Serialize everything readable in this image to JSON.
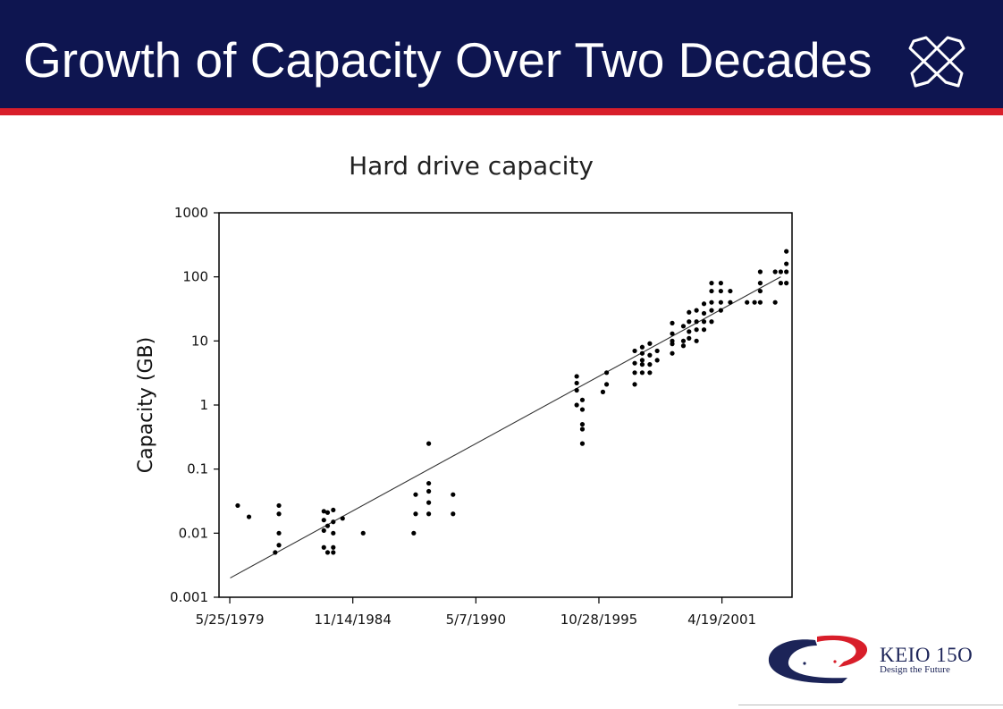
{
  "slide": {
    "title": "Growth of Capacity Over Two Decades",
    "header_icon": "crossed-pens-icon",
    "colors": {
      "header_bg": "#0e1550",
      "accent_bar": "#d81e2a",
      "brand_blue": "#1c2458",
      "brand_red": "#d81e2a"
    }
  },
  "brand": {
    "name": "KEIO 15O",
    "tagline": "Design the Future"
  },
  "chart_data": {
    "type": "scatter",
    "title": "Hard drive capacity",
    "xlabel": "",
    "ylabel": "Capacity (GB)",
    "y_scale": "log",
    "ylim": [
      0.001,
      1000
    ],
    "y_ticks": [
      {
        "value": 0.001,
        "label": "0.001"
      },
      {
        "value": 0.01,
        "label": "0.01"
      },
      {
        "value": 0.1,
        "label": "0.1"
      },
      {
        "value": 1,
        "label": "1"
      },
      {
        "value": 10,
        "label": "10"
      },
      {
        "value": 100,
        "label": "100"
      },
      {
        "value": 1000,
        "label": "1000"
      }
    ],
    "xlim": [
      "1978-12-01",
      "2004-06-01"
    ],
    "x_ticks": [
      {
        "value": "1979-05-25",
        "label": "5/25/1979"
      },
      {
        "value": "1984-11-14",
        "label": "11/14/1984"
      },
      {
        "value": "1990-05-07",
        "label": "5/7/1990"
      },
      {
        "value": "1995-10-28",
        "label": "10/28/1995"
      },
      {
        "value": "2001-04-19",
        "label": "4/19/2001"
      }
    ],
    "grid": false,
    "legend": "none",
    "trend_line": [
      {
        "x": "1979-06-01",
        "y": 0.002
      },
      {
        "x": "2003-12-01",
        "y": 100
      }
    ],
    "points": [
      {
        "x": "1979-10-01",
        "y": 0.027
      },
      {
        "x": "1980-04-01",
        "y": 0.018
      },
      {
        "x": "1981-08-01",
        "y": 0.027
      },
      {
        "x": "1981-08-01",
        "y": 0.02
      },
      {
        "x": "1981-08-01",
        "y": 0.01
      },
      {
        "x": "1981-08-01",
        "y": 0.0065
      },
      {
        "x": "1981-06-01",
        "y": 0.005
      },
      {
        "x": "1983-08-01",
        "y": 0.022
      },
      {
        "x": "1983-08-01",
        "y": 0.016
      },
      {
        "x": "1983-08-01",
        "y": 0.011
      },
      {
        "x": "1983-08-01",
        "y": 0.006
      },
      {
        "x": "1984-01-01",
        "y": 0.023
      },
      {
        "x": "1984-01-01",
        "y": 0.015
      },
      {
        "x": "1984-01-01",
        "y": 0.01
      },
      {
        "x": "1984-01-01",
        "y": 0.006
      },
      {
        "x": "1984-01-01",
        "y": 0.005
      },
      {
        "x": "1983-10-01",
        "y": 0.021
      },
      {
        "x": "1983-10-01",
        "y": 0.013
      },
      {
        "x": "1983-10-01",
        "y": 0.005
      },
      {
        "x": "1984-06-01",
        "y": 0.017
      },
      {
        "x": "1985-05-01",
        "y": 0.01
      },
      {
        "x": "1987-09-01",
        "y": 0.04
      },
      {
        "x": "1987-09-01",
        "y": 0.02
      },
      {
        "x": "1987-08-01",
        "y": 0.01
      },
      {
        "x": "1988-04-01",
        "y": 0.25
      },
      {
        "x": "1988-04-01",
        "y": 0.06
      },
      {
        "x": "1988-04-01",
        "y": 0.045
      },
      {
        "x": "1988-04-01",
        "y": 0.03
      },
      {
        "x": "1988-04-01",
        "y": 0.02
      },
      {
        "x": "1989-05-01",
        "y": 0.04
      },
      {
        "x": "1989-05-01",
        "y": 0.02
      },
      {
        "x": "1994-11-01",
        "y": 2.8
      },
      {
        "x": "1994-11-01",
        "y": 2.2
      },
      {
        "x": "1994-11-01",
        "y": 1.7
      },
      {
        "x": "1994-11-01",
        "y": 1.0
      },
      {
        "x": "1995-02-01",
        "y": 1.2
      },
      {
        "x": "1995-02-01",
        "y": 0.85
      },
      {
        "x": "1995-02-01",
        "y": 0.5
      },
      {
        "x": "1995-02-01",
        "y": 0.42
      },
      {
        "x": "1995-02-01",
        "y": 0.25
      },
      {
        "x": "1996-03-01",
        "y": 3.2
      },
      {
        "x": "1996-03-01",
        "y": 2.1
      },
      {
        "x": "1996-01-01",
        "y": 1.6
      },
      {
        "x": "1997-06-01",
        "y": 7.0
      },
      {
        "x": "1997-06-01",
        "y": 4.5
      },
      {
        "x": "1997-06-01",
        "y": 3.2
      },
      {
        "x": "1997-06-01",
        "y": 2.1
      },
      {
        "x": "1997-10-01",
        "y": 8.0
      },
      {
        "x": "1997-10-01",
        "y": 6.4
      },
      {
        "x": "1997-10-01",
        "y": 5.0
      },
      {
        "x": "1997-10-01",
        "y": 4.3
      },
      {
        "x": "1997-10-01",
        "y": 3.2
      },
      {
        "x": "1998-02-01",
        "y": 9.1
      },
      {
        "x": "1998-02-01",
        "y": 6.0
      },
      {
        "x": "1998-02-01",
        "y": 4.3
      },
      {
        "x": "1998-02-01",
        "y": 3.2
      },
      {
        "x": "1998-06-01",
        "y": 7.0
      },
      {
        "x": "1998-06-01",
        "y": 5.0
      },
      {
        "x": "1999-02-01",
        "y": 19.0
      },
      {
        "x": "1999-02-01",
        "y": 13.0
      },
      {
        "x": "1999-02-01",
        "y": 10.0
      },
      {
        "x": "1999-02-01",
        "y": 9.0
      },
      {
        "x": "1999-02-01",
        "y": 6.4
      },
      {
        "x": "1999-08-01",
        "y": 17.0
      },
      {
        "x": "1999-08-01",
        "y": 10.0
      },
      {
        "x": "1999-08-01",
        "y": 8.4
      },
      {
        "x": "1999-11-01",
        "y": 28.0
      },
      {
        "x": "1999-11-01",
        "y": 20.0
      },
      {
        "x": "1999-11-01",
        "y": 14.0
      },
      {
        "x": "1999-11-01",
        "y": 11.0
      },
      {
        "x": "2000-03-01",
        "y": 30.0
      },
      {
        "x": "2000-03-01",
        "y": 20.0
      },
      {
        "x": "2000-03-01",
        "y": 15.0
      },
      {
        "x": "2000-03-01",
        "y": 10.0
      },
      {
        "x": "2000-07-01",
        "y": 38.0
      },
      {
        "x": "2000-07-01",
        "y": 27.0
      },
      {
        "x": "2000-07-01",
        "y": 20.0
      },
      {
        "x": "2000-07-01",
        "y": 15.0
      },
      {
        "x": "2000-11-01",
        "y": 80.0
      },
      {
        "x": "2000-11-01",
        "y": 60.0
      },
      {
        "x": "2000-11-01",
        "y": 40.0
      },
      {
        "x": "2000-11-01",
        "y": 30.0
      },
      {
        "x": "2000-11-01",
        "y": 20.0
      },
      {
        "x": "2001-04-01",
        "y": 80.0
      },
      {
        "x": "2001-04-01",
        "y": 60.0
      },
      {
        "x": "2001-04-01",
        "y": 40.0
      },
      {
        "x": "2001-04-01",
        "y": 30.0
      },
      {
        "x": "2001-09-01",
        "y": 60.0
      },
      {
        "x": "2001-09-01",
        "y": 40.0
      },
      {
        "x": "2002-06-01",
        "y": 40.0
      },
      {
        "x": "2002-10-01",
        "y": 40.0
      },
      {
        "x": "2003-01-01",
        "y": 120.0
      },
      {
        "x": "2003-01-01",
        "y": 80.0
      },
      {
        "x": "2003-01-01",
        "y": 60.0
      },
      {
        "x": "2003-01-01",
        "y": 40.0
      },
      {
        "x": "2003-09-01",
        "y": 120.0
      },
      {
        "x": "2003-09-01",
        "y": 40.0
      },
      {
        "x": "2003-12-01",
        "y": 120.0
      },
      {
        "x": "2003-12-01",
        "y": 80.0
      },
      {
        "x": "2004-03-01",
        "y": 250.0
      },
      {
        "x": "2004-03-01",
        "y": 160.0
      },
      {
        "x": "2004-03-01",
        "y": 120.0
      },
      {
        "x": "2004-03-01",
        "y": 80.0
      }
    ]
  }
}
